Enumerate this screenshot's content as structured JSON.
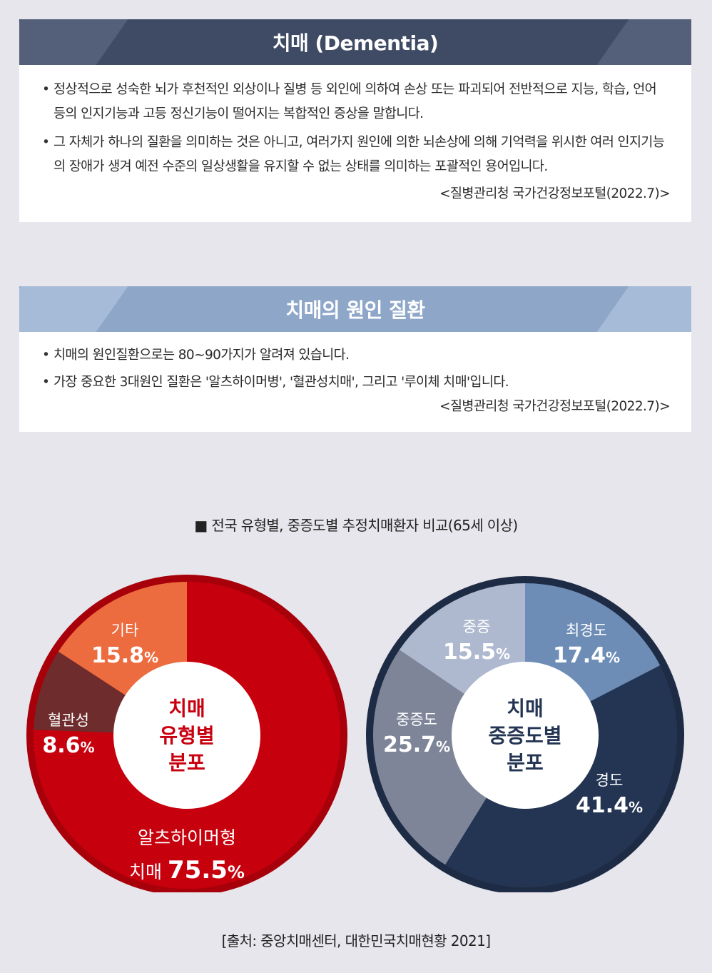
{
  "dementia_card": {
    "title": "치매 (Dementia)",
    "bullets": [
      "정상적으로 성숙한 뇌가 후천적인 외상이나 질병 등 외인에 의하여 손상 또는 파괴되어 전반적으로 지능, 학습, 언어 등의 인지기능과 고등 정신기능이 떨어지는 복합적인 증상을 말합니다.",
      "그 자체가 하나의 질환을 의미하는 것은 아니고, 여러가지 원인에 의한 뇌손상에 의해 기억력을 위시한 여러 인지기능의 장애가 생겨 예전 수준의 일상생활을 유지할 수 없는 상태를 의미하는 포괄적인 용어입니다."
    ],
    "source": "<질병관리청 국가건강정보포털(2022.7)>"
  },
  "cause_card": {
    "title": "치매의 원인 질환",
    "bullets": [
      "치매의 원인질환으로는 80~90가지가 알려져 있습니다.",
      "가장 중요한 3대원인 질환은 '알츠하이머병', '혈관성치매', 그리고 '루이체 치매'입니다."
    ],
    "source": "<질병관리청 국가건강정보포털(2022.7)>"
  },
  "chart_section_title": "■ 전국 유형별, 중증도별 추정치매환자 비교(65세 이상)",
  "footer_source": "[출처: 중앙치매센터, 대한민국치매현황 2021]",
  "chart_data": [
    {
      "type": "pie",
      "center_label": [
        "치매",
        "유형별",
        "분포"
      ],
      "center_color": "#c9000f",
      "slices": [
        {
          "label": "알츠하이머형 치매",
          "label_lines": [
            "알츠하이머형",
            "치매"
          ],
          "value": 75.5,
          "value_text": "75.5",
          "color": "#c7000d"
        },
        {
          "label": "혈관성",
          "label_lines": [
            "혈관성"
          ],
          "value": 8.6,
          "value_text": "8.6",
          "color": "#6e2c2c"
        },
        {
          "label": "기타",
          "label_lines": [
            "기타"
          ],
          "value": 15.8,
          "value_text": "15.8",
          "color": "#ec6b3f"
        }
      ],
      "ring_color": "#a8000a",
      "unit": "%"
    },
    {
      "type": "pie",
      "center_label": [
        "치매",
        "중증도별",
        "분포"
      ],
      "center_color": "#243553",
      "slices": [
        {
          "label": "최경도",
          "label_lines": [
            "최경도"
          ],
          "value": 17.4,
          "value_text": "17.4",
          "color": "#6d8db7"
        },
        {
          "label": "경도",
          "label_lines": [
            "경도"
          ],
          "value": 41.4,
          "value_text": "41.4",
          "color": "#243553"
        },
        {
          "label": "중증도",
          "label_lines": [
            "중증도"
          ],
          "value": 25.7,
          "value_text": "25.7",
          "color": "#7e8599"
        },
        {
          "label": "중증",
          "label_lines": [
            "중증"
          ],
          "value": 15.5,
          "value_text": "15.5",
          "color": "#aeb9d0"
        }
      ],
      "ring_color": "#1e2b45",
      "unit": "%"
    }
  ]
}
